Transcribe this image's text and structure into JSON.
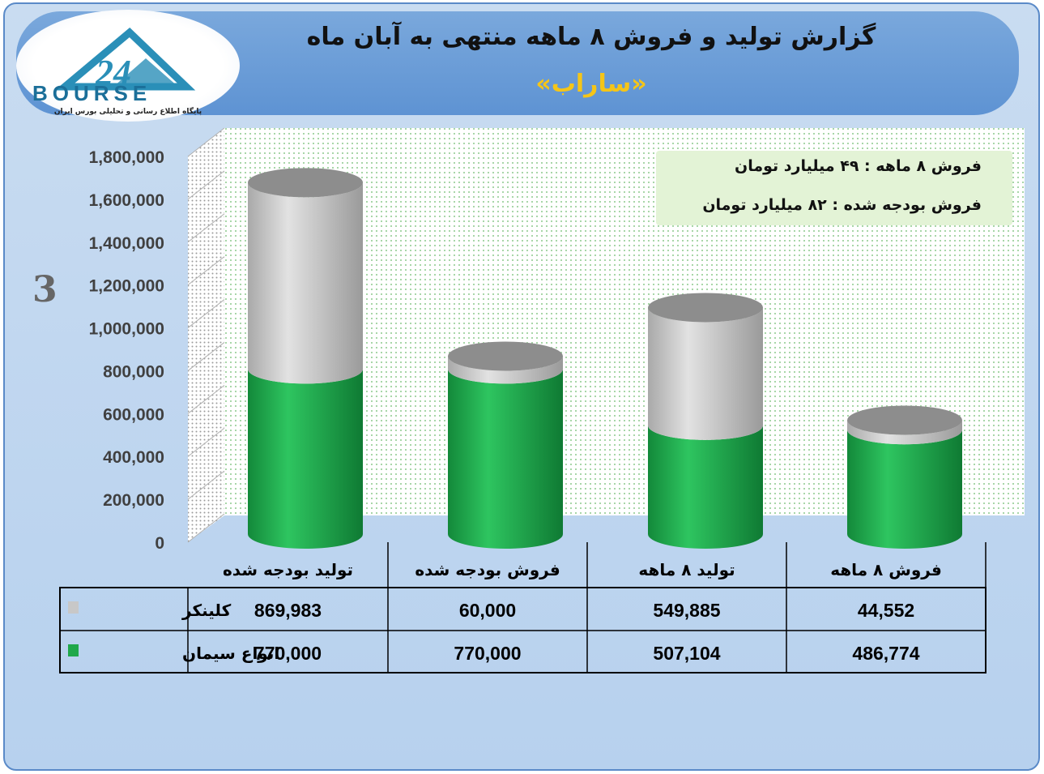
{
  "header": {
    "title": "گزارش تولید و فروش ۸ ماهه منتهی به آبان ماه",
    "subtitle": "«ساراب»"
  },
  "logo": {
    "brand": "BOURSE",
    "number": "24",
    "tagline": "پایگاه اطلاع رسانی و تحلیلی بورس ایران"
  },
  "info_box": {
    "line1": "فروش ۸ ماهه : ۴۹ میلیارد تومان",
    "line2": "فروش بودجه شده : ۸۲ میلیارد تومان"
  },
  "colors": {
    "clinker": "#c8c8c8",
    "cement": "#1fa84a"
  },
  "chart_data": {
    "type": "bar",
    "stacked": true,
    "categories": [
      "تولید بودجه شده",
      "فروش بودجه شده",
      "تولید ۸ ماهه",
      "فروش ۸ ماهه"
    ],
    "series": [
      {
        "name": "انواع سیمان",
        "values": [
          770000,
          770000,
          507104,
          486774
        ],
        "labels": [
          "770,000",
          "770,000",
          "507,104",
          "486,774"
        ]
      },
      {
        "name": "کلینکر",
        "values": [
          869983,
          60000,
          549885,
          44552
        ],
        "labels": [
          "869,983",
          "60,000",
          "549,885",
          "44,552"
        ]
      }
    ],
    "ylim": [
      0,
      1800000
    ],
    "yticks": [
      "0",
      "200,000",
      "400,000",
      "600,000",
      "800,000",
      "1,000,000",
      "1,200,000",
      "1,400,000",
      "1,600,000",
      "1,800,000"
    ],
    "ylabel": "",
    "grid": true
  }
}
